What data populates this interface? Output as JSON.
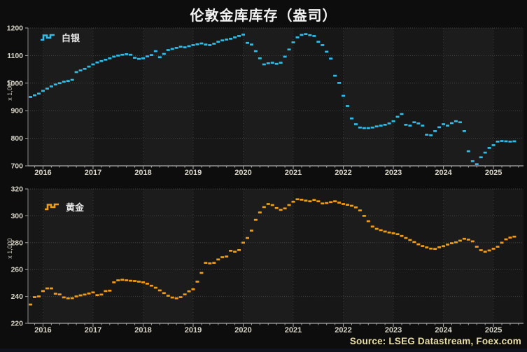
{
  "title": "伦敦金库库存（盎司）",
  "source": "Source: LSEG Datastream, Foex.com",
  "colors": {
    "background": "#0d0d0d",
    "plot_band_even": "#1c1c1c",
    "plot_band_odd": "#171717",
    "grid_horizontal": "#424242",
    "grid_vertical": "#3a3a3a",
    "axis": "#a9a9a9",
    "axis_left": "#8a8a8a",
    "tick_label": "#d9d5c9",
    "silver": "#2fbce8",
    "gold": "#f09c18",
    "title_text": "#f5f5f5",
    "source_text": "#e9dfa2",
    "legend_text": "#e8e8e8"
  },
  "x_axis": {
    "domain_start": 2015.7,
    "domain_end": 2025.6,
    "data_start_decimal_year": 2015.75,
    "data_start_label": "2015-10",
    "interval": "monthly"
  },
  "chart_data": [
    {
      "type": "line",
      "style": "step-dash",
      "title": "白银",
      "xlabel": "",
      "ylabel": "x 1,000",
      "ylim": [
        700,
        1200
      ],
      "yticks": [
        700,
        800,
        900,
        1000,
        1100,
        1200
      ],
      "xticks": [
        2016,
        2017,
        2018,
        2019,
        2020,
        2021,
        2022,
        2023,
        2024,
        2025
      ],
      "grid": true,
      "legend_position": "top-left",
      "series": [
        {
          "name": "白银",
          "color": "#2fbce8",
          "x_start": "2015-10",
          "values": [
            950,
            956,
            962,
            972,
            980,
            988,
            995,
            1000,
            1005,
            1008,
            1012,
            1040,
            1046,
            1052,
            1060,
            1068,
            1075,
            1080,
            1085,
            1090,
            1096,
            1100,
            1103,
            1105,
            1103,
            1092,
            1088,
            1090,
            1097,
            1102,
            1116,
            1094,
            1106,
            1120,
            1124,
            1128,
            1132,
            1130,
            1134,
            1138,
            1141,
            1144,
            1140,
            1138,
            1143,
            1150,
            1155,
            1158,
            1161,
            1166,
            1171,
            1176,
            1146,
            1140,
            1116,
            1090,
            1068,
            1072,
            1074,
            1070,
            1074,
            1096,
            1122,
            1148,
            1166,
            1175,
            1178,
            1174,
            1171,
            1150,
            1138,
            1114,
            1089,
            1027,
            1001,
            954,
            917,
            872,
            851,
            839,
            837,
            837,
            839,
            843,
            846,
            849,
            854,
            862,
            878,
            888,
            849,
            846,
            858,
            854,
            846,
            813,
            811,
            826,
            840,
            851,
            846,
            855,
            862,
            858,
            826,
            753,
            717,
            706,
            731,
            748,
            765,
            775,
            788,
            790,
            789,
            788,
            789
          ]
        }
      ]
    },
    {
      "type": "line",
      "style": "step-dash",
      "title": "黄金",
      "xlabel": "",
      "ylabel": "x 1,000",
      "ylim": [
        220,
        320
      ],
      "yticks": [
        220,
        240,
        260,
        280,
        300,
        320
      ],
      "xticks": [
        2016,
        2017,
        2018,
        2019,
        2020,
        2021,
        2022,
        2023,
        2024,
        2025
      ],
      "grid": true,
      "legend_position": "top-left",
      "series": [
        {
          "name": "黄金",
          "color": "#f09c18",
          "x_start": "2015-10",
          "values": [
            234,
            239.5,
            240,
            244,
            246,
            246,
            242,
            241.5,
            239.3,
            238.6,
            238.7,
            240,
            240.8,
            241.4,
            242.2,
            243,
            241,
            241.4,
            244,
            244.3,
            250.5,
            252,
            252.4,
            252,
            251.7,
            251.5,
            251,
            250.5,
            249.5,
            248,
            246.5,
            244.5,
            242.5,
            240.5,
            239.2,
            238.6,
            239.5,
            241.5,
            243.8,
            245.3,
            251,
            257.5,
            265,
            264.6,
            265,
            267.5,
            269.2,
            269.7,
            274,
            273.3,
            274.5,
            280,
            283.5,
            289,
            297,
            302.5,
            306.5,
            308.8,
            308,
            305.8,
            304.4,
            305.5,
            308,
            310.5,
            312.3,
            312,
            311.3,
            310.8,
            311.8,
            310.8,
            309.2,
            309.5,
            310.2,
            310.8,
            309.8,
            308.8,
            308.2,
            307.5,
            306.3,
            304,
            300,
            296,
            292,
            290.3,
            289.3,
            288.3,
            287.6,
            287,
            286.3,
            285,
            283.5,
            282,
            280.5,
            278.8,
            277.5,
            276.5,
            275.6,
            275.4,
            276.6,
            277.4,
            278.6,
            279.6,
            280.3,
            281.5,
            282.9,
            282.3,
            281,
            277,
            274.4,
            273.3,
            274.2,
            275.5,
            277,
            280,
            282.5,
            283.8,
            284.5
          ]
        }
      ]
    }
  ]
}
